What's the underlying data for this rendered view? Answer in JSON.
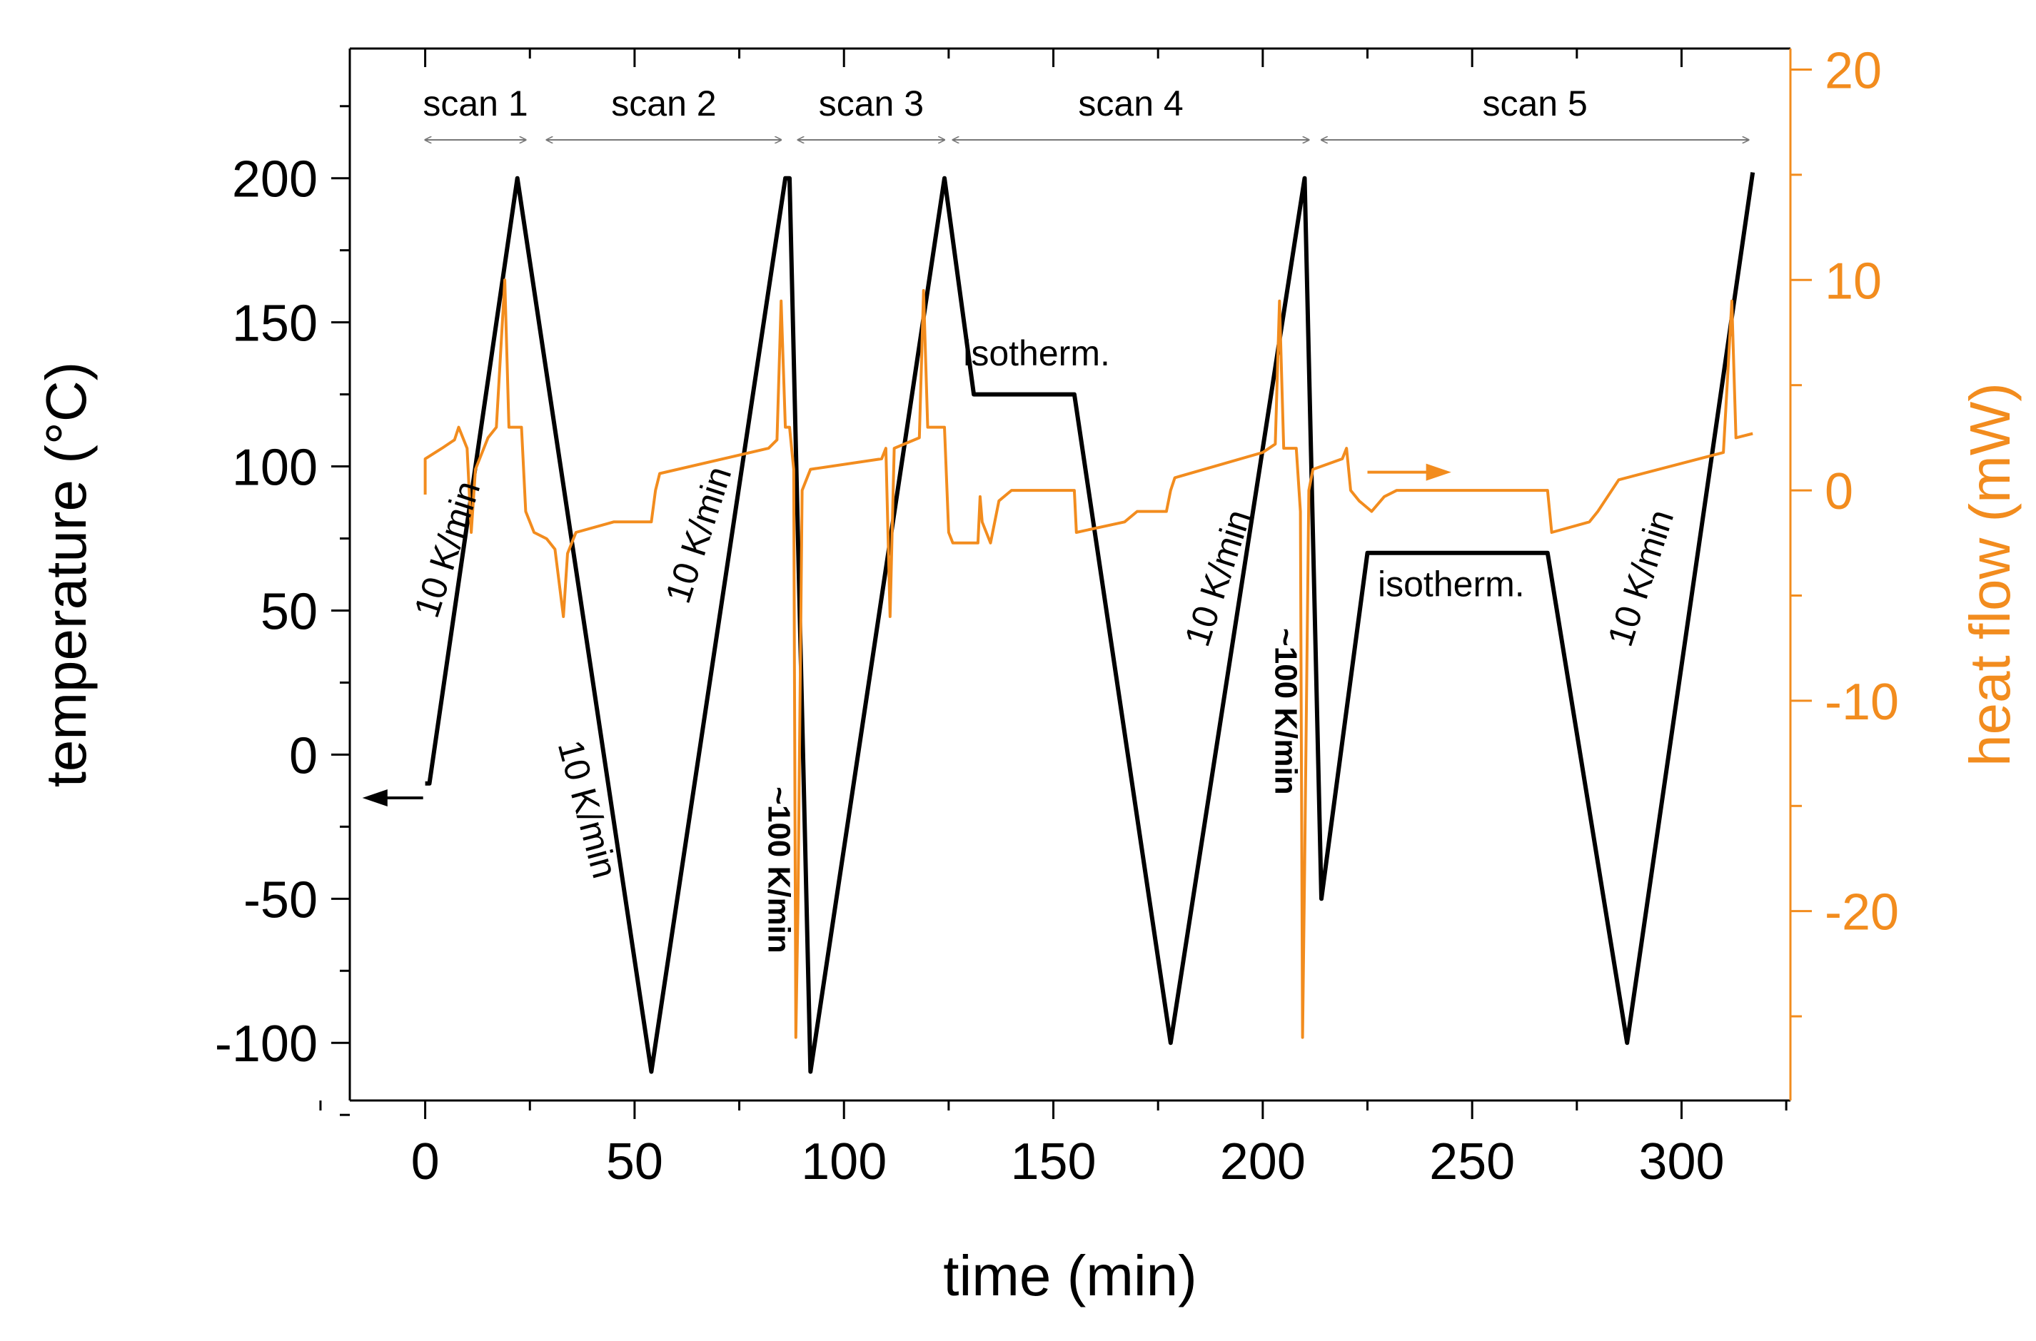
{
  "chart_data": {
    "type": "line",
    "xlabel": "time (min)",
    "ylabel_left": "temperature (°C)",
    "ylabel_right": "heat flow (mW)",
    "xlim": [
      -18,
      326
    ],
    "ylim_left": [
      -120,
      245
    ],
    "ylim_right": [
      -29,
      21
    ],
    "x_ticks": [
      0,
      50,
      100,
      150,
      200,
      250,
      300
    ],
    "y_left_ticks": [
      -100,
      -50,
      0,
      50,
      100,
      150,
      200
    ],
    "y_right_ticks": [
      -20,
      -10,
      0,
      10,
      20
    ],
    "colors": {
      "temperature": "#000000",
      "heat_flow": "#f28c1e",
      "arrow": "#777777"
    },
    "series": [
      {
        "name": "temperature",
        "axis": "left",
        "points": [
          [
            0,
            -10
          ],
          [
            1,
            -10
          ],
          [
            22,
            200
          ],
          [
            54,
            -110
          ],
          [
            86,
            200
          ],
          [
            87,
            200
          ],
          [
            92,
            -110
          ],
          [
            124,
            200
          ],
          [
            131,
            125
          ],
          [
            155,
            125
          ],
          [
            178,
            -100
          ],
          [
            210,
            200
          ],
          [
            214,
            -50
          ],
          [
            225,
            70
          ],
          [
            268,
            70
          ],
          [
            287,
            -100
          ],
          [
            317,
            202
          ]
        ]
      },
      {
        "name": "heat flow",
        "axis": "right",
        "points": [
          [
            0,
            -0.2
          ],
          [
            0,
            1.5
          ],
          [
            4,
            2
          ],
          [
            7,
            2.4
          ],
          [
            8,
            3
          ],
          [
            9,
            2.5
          ],
          [
            10,
            2
          ],
          [
            11,
            -2
          ],
          [
            12,
            1
          ],
          [
            15,
            2.5
          ],
          [
            17,
            3
          ],
          [
            19,
            10
          ],
          [
            20,
            3
          ],
          [
            22,
            3
          ],
          [
            23,
            3
          ],
          [
            24,
            -1
          ],
          [
            26,
            -2
          ],
          [
            29,
            -2.3
          ],
          [
            31,
            -2.8
          ],
          [
            33,
            -6
          ],
          [
            34,
            -3
          ],
          [
            36,
            -2
          ],
          [
            45,
            -1.5
          ],
          [
            54,
            -1.5
          ],
          [
            55,
            0
          ],
          [
            56,
            0.8
          ],
          [
            82,
            2
          ],
          [
            84,
            2.4
          ],
          [
            85,
            9
          ],
          [
            86,
            3
          ],
          [
            87,
            3
          ],
          [
            88,
            1
          ],
          [
            88.5,
            -26
          ],
          [
            89,
            -20
          ],
          [
            90,
            0
          ],
          [
            92,
            1
          ],
          [
            109,
            1.5
          ],
          [
            110,
            2
          ],
          [
            111,
            -6
          ],
          [
            112,
            2
          ],
          [
            118,
            2.5
          ],
          [
            119,
            9.5
          ],
          [
            120,
            3
          ],
          [
            122,
            3
          ],
          [
            124,
            3
          ],
          [
            125,
            -2
          ],
          [
            126,
            -2.5
          ],
          [
            132,
            -2.5
          ],
          [
            132.5,
            -0.3
          ],
          [
            133,
            -1.5
          ],
          [
            135,
            -2.5
          ],
          [
            137,
            -0.5
          ],
          [
            140,
            0
          ],
          [
            155,
            0
          ],
          [
            155.5,
            -2
          ],
          [
            167,
            -1.5
          ],
          [
            170,
            -1
          ],
          [
            177,
            -1
          ],
          [
            178,
            0
          ],
          [
            179,
            0.6
          ],
          [
            200,
            1.8
          ],
          [
            203,
            2.2
          ],
          [
            204,
            9
          ],
          [
            205,
            2
          ],
          [
            208,
            2
          ],
          [
            209,
            -1
          ],
          [
            209.5,
            -26
          ],
          [
            210,
            -18
          ],
          [
            211,
            0
          ],
          [
            212,
            1
          ],
          [
            219,
            1.5
          ],
          [
            220,
            2
          ],
          [
            221,
            0
          ],
          [
            223,
            -0.5
          ],
          [
            226,
            -1
          ],
          [
            229,
            -0.3
          ],
          [
            232,
            0
          ],
          [
            268,
            0
          ],
          [
            269,
            -2
          ],
          [
            278,
            -1.5
          ],
          [
            280,
            -1
          ],
          [
            285,
            0.5
          ],
          [
            310,
            1.8
          ],
          [
            312,
            9
          ],
          [
            313,
            2.5
          ],
          [
            317,
            2.7
          ]
        ]
      }
    ],
    "annotations": {
      "scans": [
        {
          "label": "scan 1",
          "x0": 0,
          "x1": 24
        },
        {
          "label": "scan 2",
          "x0": 29,
          "x1": 85
        },
        {
          "label": "scan 3",
          "x0": 89,
          "x1": 124
        },
        {
          "label": "scan 4",
          "x0": 126,
          "x1": 211
        },
        {
          "label": "scan 5",
          "x0": 214,
          "x1": 316
        }
      ],
      "rates": [
        {
          "label": "10 K/min",
          "x": 8,
          "y": 70,
          "angle": -72,
          "bold": false
        },
        {
          "label": "10 K/min",
          "x": 36,
          "y": -20,
          "angle": 75,
          "bold": false
        },
        {
          "label": "10 K/min",
          "x": 68,
          "y": 75,
          "angle": -72,
          "bold": false
        },
        {
          "label": "~100 K/min",
          "x": 82,
          "y": -40,
          "angle": 90,
          "bold": true
        },
        {
          "label": "10 K/min",
          "x": 192,
          "y": 60,
          "angle": -72,
          "bold": false
        },
        {
          "label": "~100 K/min",
          "x": 203,
          "y": 15,
          "angle": 90,
          "bold": true
        },
        {
          "label": "10 K/min",
          "x": 293,
          "y": 60,
          "angle": -72,
          "bold": false
        }
      ],
      "isotherms": [
        {
          "label": "isotherm.",
          "x": 146,
          "y": 135
        },
        {
          "label": "isotherm.",
          "x": 245,
          "y": 55
        }
      ]
    }
  }
}
